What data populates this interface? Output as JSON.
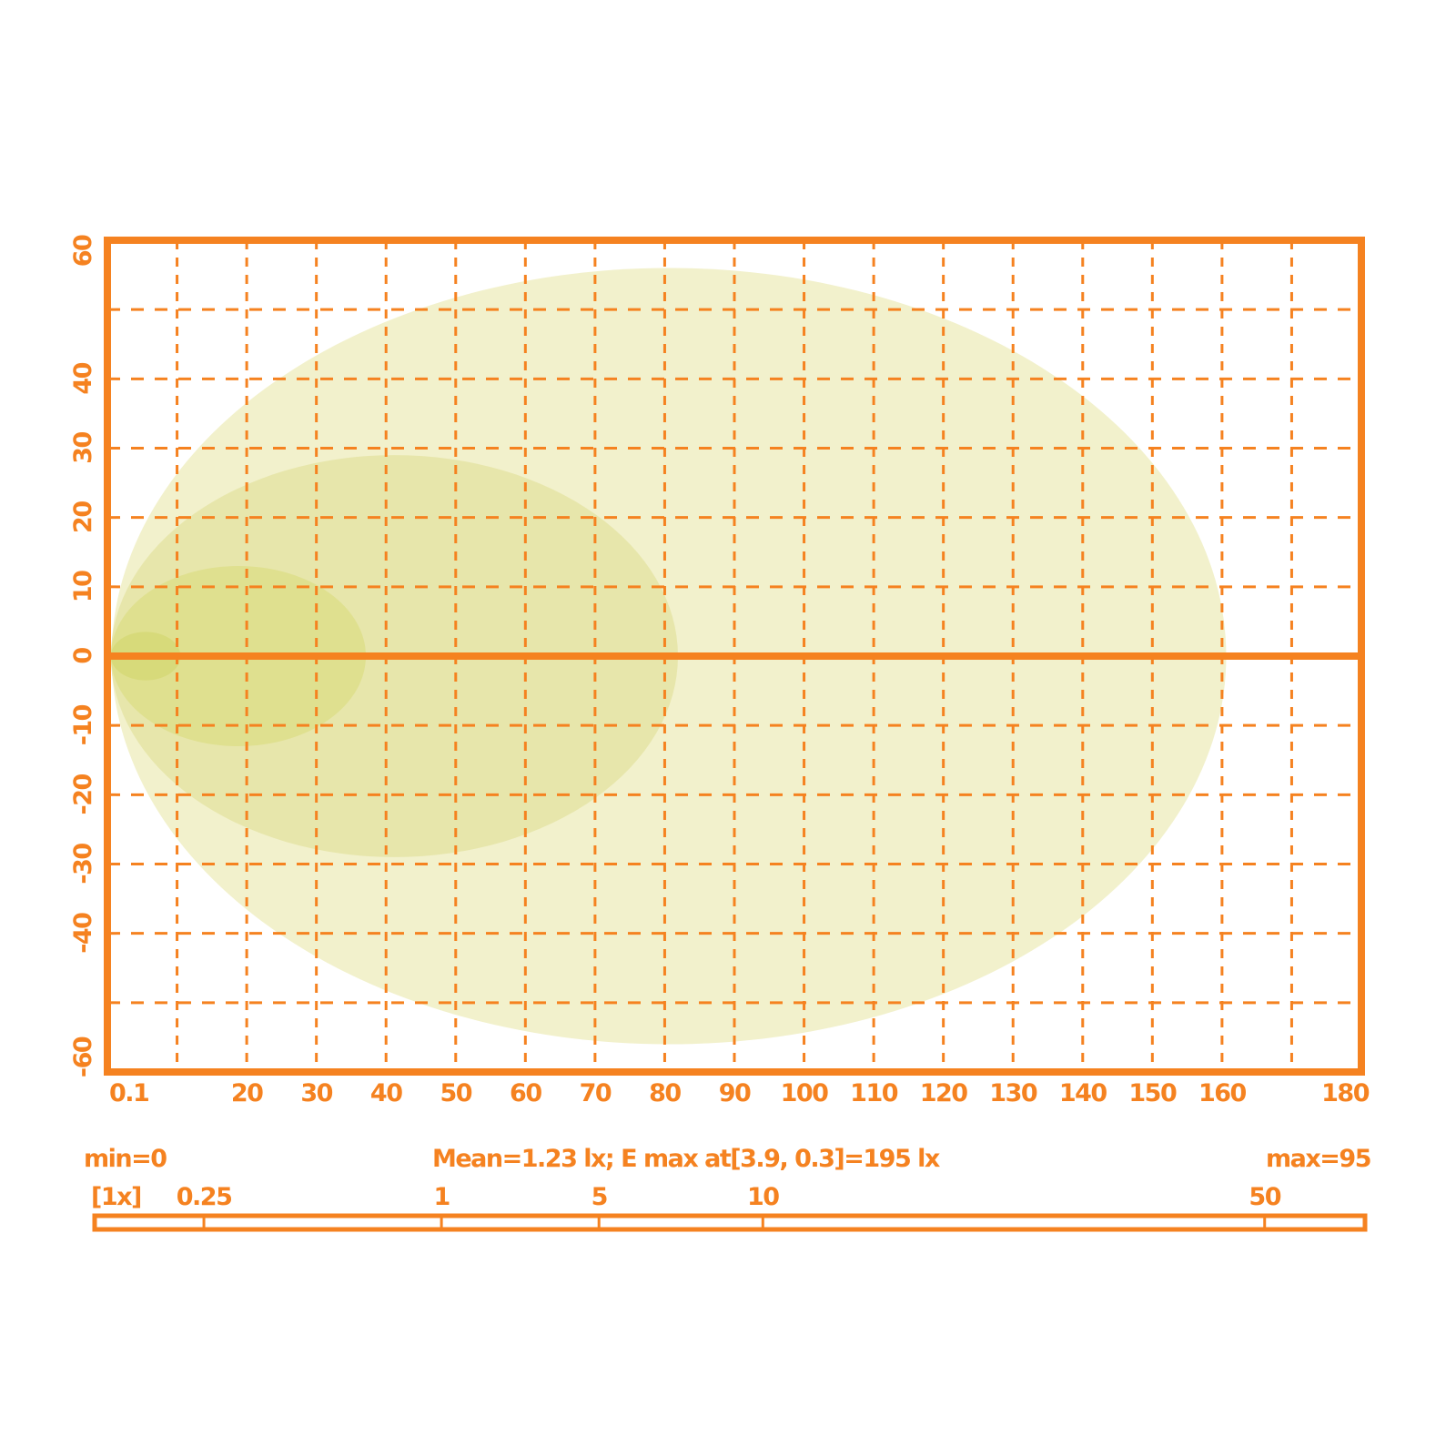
{
  "chart_data": {
    "type": "contour",
    "xlim": [
      0,
      180
    ],
    "ylim": [
      -60,
      60
    ],
    "x_tick_labels": [
      {
        "value": 0,
        "label": "0.1"
      },
      {
        "value": 20,
        "label": "20"
      },
      {
        "value": 30,
        "label": "30"
      },
      {
        "value": 40,
        "label": "40"
      },
      {
        "value": 50,
        "label": "50"
      },
      {
        "value": 60,
        "label": "60"
      },
      {
        "value": 70,
        "label": "70"
      },
      {
        "value": 80,
        "label": "80"
      },
      {
        "value": 90,
        "label": "90"
      },
      {
        "value": 100,
        "label": "100"
      },
      {
        "value": 110,
        "label": "110"
      },
      {
        "value": 120,
        "label": "120"
      },
      {
        "value": 130,
        "label": "130"
      },
      {
        "value": 140,
        "label": "140"
      },
      {
        "value": 150,
        "label": "150"
      },
      {
        "value": 160,
        "label": "160"
      },
      {
        "value": 180,
        "label": "180"
      }
    ],
    "y_tick_labels": [
      {
        "value": 60,
        "label": "60"
      },
      {
        "value": 40,
        "label": "40"
      },
      {
        "value": 30,
        "label": "30"
      },
      {
        "value": 20,
        "label": "20"
      },
      {
        "value": 10,
        "label": "10"
      },
      {
        "value": 0,
        "label": "0"
      },
      {
        "value": -10,
        "label": "-10"
      },
      {
        "value": -20,
        "label": "-20"
      },
      {
        "value": -30,
        "label": "-30"
      },
      {
        "value": -40,
        "label": "-40"
      },
      {
        "value": -60,
        "label": "-60"
      }
    ],
    "grid": true,
    "grid_step": 10,
    "contours": [
      {
        "level": "0.25",
        "cx": 80.6,
        "cy": 0,
        "rx": 80,
        "ry": 56,
        "color": "#f2f1cc"
      },
      {
        "level": "1",
        "cx": 41.2,
        "cy": 0,
        "rx": 40.7,
        "ry": 29,
        "color": "#e7e6ab"
      },
      {
        "level": "5",
        "cx": 18.8,
        "cy": 0,
        "rx": 18.3,
        "ry": 13,
        "color": "#dfe08f"
      },
      {
        "level": "10",
        "cx": 5.5,
        "cy": 0,
        "rx": 5,
        "ry": 3.5,
        "color": "#d7da7a"
      }
    ],
    "accent_color": "#f58220",
    "stats": {
      "min": "min=0",
      "mean": "Mean=1.23 lx; E max  at[3.9, 0.3]=195 lx",
      "max": "max=95"
    },
    "scale": {
      "multiplier": "[1x]",
      "ticks": [
        {
          "label": "0.25",
          "pos": 0.086
        },
        {
          "label": "1",
          "pos": 0.273
        },
        {
          "label": "5",
          "pos": 0.397
        },
        {
          "label": "10",
          "pos": 0.526
        },
        {
          "label": "50",
          "pos": 0.921
        }
      ]
    }
  }
}
